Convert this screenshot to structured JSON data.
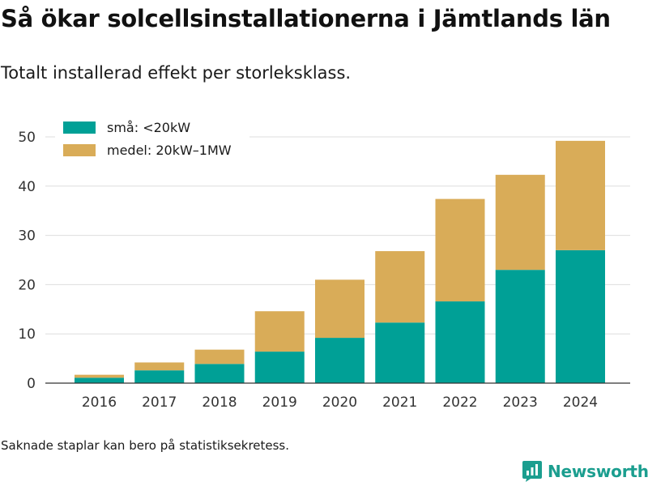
{
  "title": "Så ökar solcellsinstallationerna i Jämtlands län",
  "subtitle": "Totalt installerad effekt per storleksklass.",
  "footnote": "Saknade staplar kan bero på statistiksekretess.",
  "brand": {
    "name": "Newsworthy",
    "icon": "newsworthy-logo-icon",
    "color": "#1b9e8f"
  },
  "chart_data": {
    "type": "bar",
    "stacked": true,
    "categories": [
      "2016",
      "2017",
      "2018",
      "2019",
      "2020",
      "2021",
      "2022",
      "2023",
      "2024"
    ],
    "series": [
      {
        "name": "små: <20kW",
        "color": "#00a096",
        "values": [
          1.1,
          2.6,
          3.9,
          6.4,
          9.2,
          12.3,
          16.6,
          23.0,
          27.0
        ]
      },
      {
        "name": "medel: 20kW–1MW",
        "color": "#d9ac58",
        "values": [
          0.6,
          1.6,
          2.9,
          8.2,
          11.8,
          14.5,
          20.8,
          19.3,
          22.2
        ]
      }
    ],
    "ylim": [
      0,
      52
    ],
    "yticks": [
      0,
      10,
      20,
      30,
      40,
      50
    ],
    "xlabel": "",
    "ylabel": "",
    "grid": true,
    "legend_position": "top-left"
  }
}
